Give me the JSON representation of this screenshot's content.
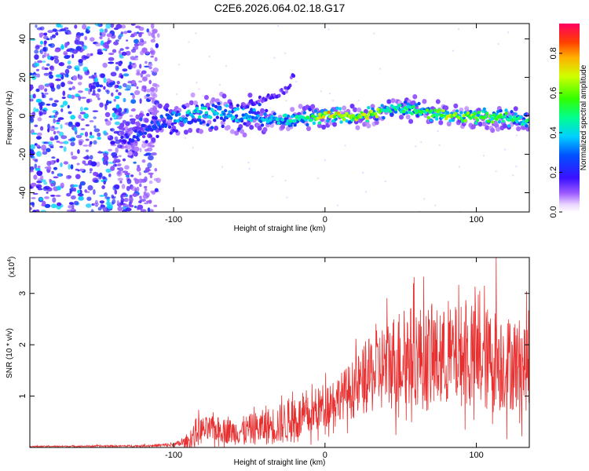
{
  "page": {
    "title": "C2E6.2026.064.02.18.G17"
  },
  "chart_data": [
    {
      "type": "heatmap",
      "title": "C2E6.2026.064.02.18.G17",
      "xlabel": "Height of straight line (km)",
      "ylabel": "Frequency (Hz)",
      "xlim": [
        -195,
        135
      ],
      "ylim": [
        -50,
        48
      ],
      "xticks": [
        -100,
        0,
        100
      ],
      "xtick_labels": [
        "-100",
        "0",
        "100"
      ],
      "yticks": [
        -40,
        -20,
        0,
        20,
        40
      ],
      "ytick_labels": [
        "-40",
        "-20",
        "0",
        "20",
        "40"
      ],
      "colorbar": {
        "label": "Normalized spectral amplitude",
        "range": [
          0,
          0.95
        ],
        "ticks": [
          0.0,
          0.2,
          0.4,
          0.6,
          0.8
        ],
        "tick_labels": [
          "0.0",
          "0.2",
          "0.4",
          "0.6",
          "0.8"
        ]
      },
      "ridge": {
        "description_points_x": [
          -130,
          -120,
          -110,
          -100,
          -90,
          -80,
          -70,
          -60,
          -50,
          -40,
          -30,
          -20,
          -10,
          0,
          10,
          20,
          30,
          40,
          50,
          60,
          70,
          80,
          90,
          100,
          110,
          120,
          130
        ],
        "frequency_hz": [
          -12,
          -8,
          -4,
          -2,
          0,
          1,
          2,
          1,
          0,
          -1,
          -2,
          -2,
          -1,
          0,
          0,
          -1,
          1,
          3,
          4,
          3,
          1,
          0,
          0,
          0,
          -1,
          -1,
          -2
        ],
        "amplitude": [
          0.2,
          0.25,
          0.3,
          0.35,
          0.45,
          0.45,
          0.4,
          0.4,
          0.4,
          0.4,
          0.45,
          0.5,
          0.55,
          0.8,
          0.75,
          0.7,
          0.75,
          0.55,
          0.5,
          0.55,
          0.6,
          0.7,
          0.65,
          0.7,
          0.6,
          0.6,
          0.5
        ]
      },
      "branch": {
        "x": [
          -55,
          -45,
          -35,
          -25,
          -20
        ],
        "frequency_hz": [
          5,
          8,
          10,
          14,
          22
        ]
      }
    },
    {
      "type": "line",
      "xlabel": "Height of straight line (km)",
      "ylabel": "SNR (10 * v/v)",
      "y_multiplier_label": "(x10",
      "y_multiplier_exp": "4",
      "y_multiplier_close": ")",
      "xlim": [
        -195,
        135
      ],
      "ylim": [
        0,
        3.7
      ],
      "xticks": [
        -100,
        0,
        100
      ],
      "xtick_labels": [
        "-100",
        "0",
        "100"
      ],
      "yticks": [
        1,
        2,
        3
      ],
      "ytick_labels": [
        "1",
        "2",
        "3"
      ],
      "color": "#e83030",
      "envelope": {
        "x": [
          -195,
          -120,
          -100,
          -90,
          -85,
          -80,
          -70,
          -60,
          -50,
          -40,
          -30,
          -20,
          -10,
          0,
          10,
          20,
          30,
          40,
          50,
          60,
          70,
          80,
          90,
          100,
          110,
          120,
          135
        ],
        "mean": [
          0.02,
          0.03,
          0.05,
          0.12,
          0.3,
          0.35,
          0.35,
          0.3,
          0.35,
          0.4,
          0.45,
          0.55,
          0.6,
          0.85,
          1.0,
          1.15,
          1.4,
          1.6,
          1.75,
          1.8,
          1.7,
          1.75,
          1.8,
          1.7,
          1.7,
          1.65,
          1.6
        ],
        "amp": [
          0.01,
          0.02,
          0.04,
          0.12,
          0.3,
          0.25,
          0.25,
          0.25,
          0.3,
          0.35,
          0.4,
          0.45,
          0.4,
          0.45,
          0.45,
          0.6,
          0.75,
          0.9,
          1.0,
          1.0,
          1.05,
          0.95,
          1.0,
          1.0,
          1.05,
          0.95,
          0.9
        ]
      },
      "peak": {
        "x": 113,
        "y": 3.7
      }
    }
  ]
}
